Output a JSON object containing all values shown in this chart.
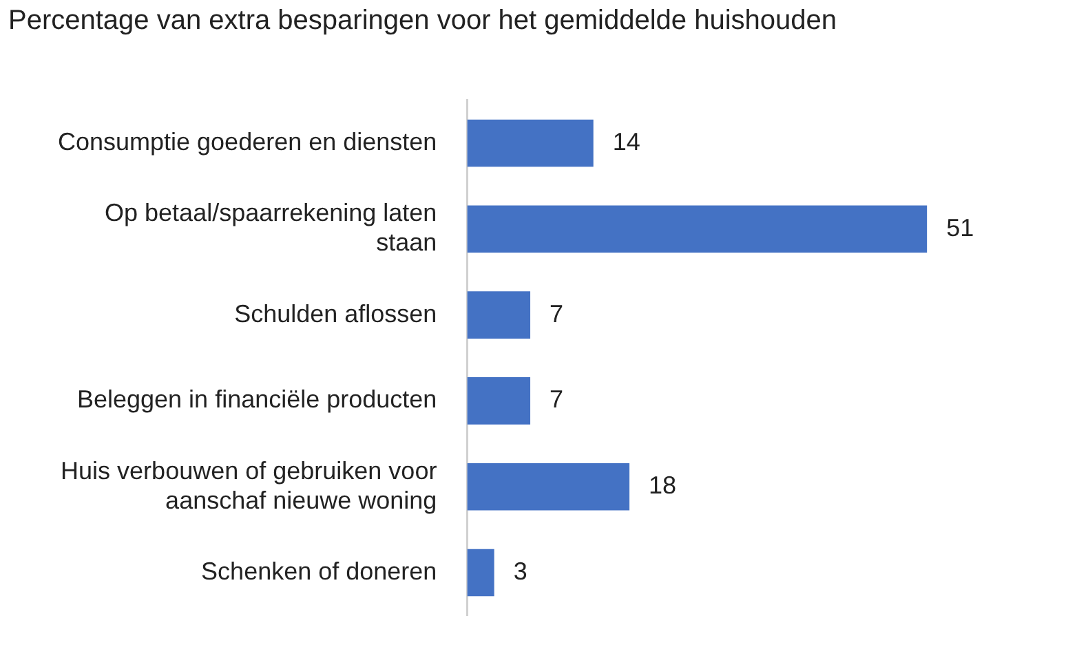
{
  "chart_data": {
    "type": "bar",
    "orientation": "horizontal",
    "title": "Percentage van extra besparingen voor het gemiddelde huishouden",
    "categories": [
      "Consumptie goederen en diensten",
      "Op betaal/spaarrekening laten staan",
      "Schulden aflossen",
      "Beleggen in financiële producten",
      "Huis verbouwen of gebruiken voor aanschaf nieuwe woning",
      "Schenken of doneren"
    ],
    "values": [
      14,
      51,
      7,
      7,
      18,
      3
    ],
    "color": "#4472c4",
    "data_labels": true,
    "grid": false,
    "legend": false,
    "tick_labels": "y"
  }
}
